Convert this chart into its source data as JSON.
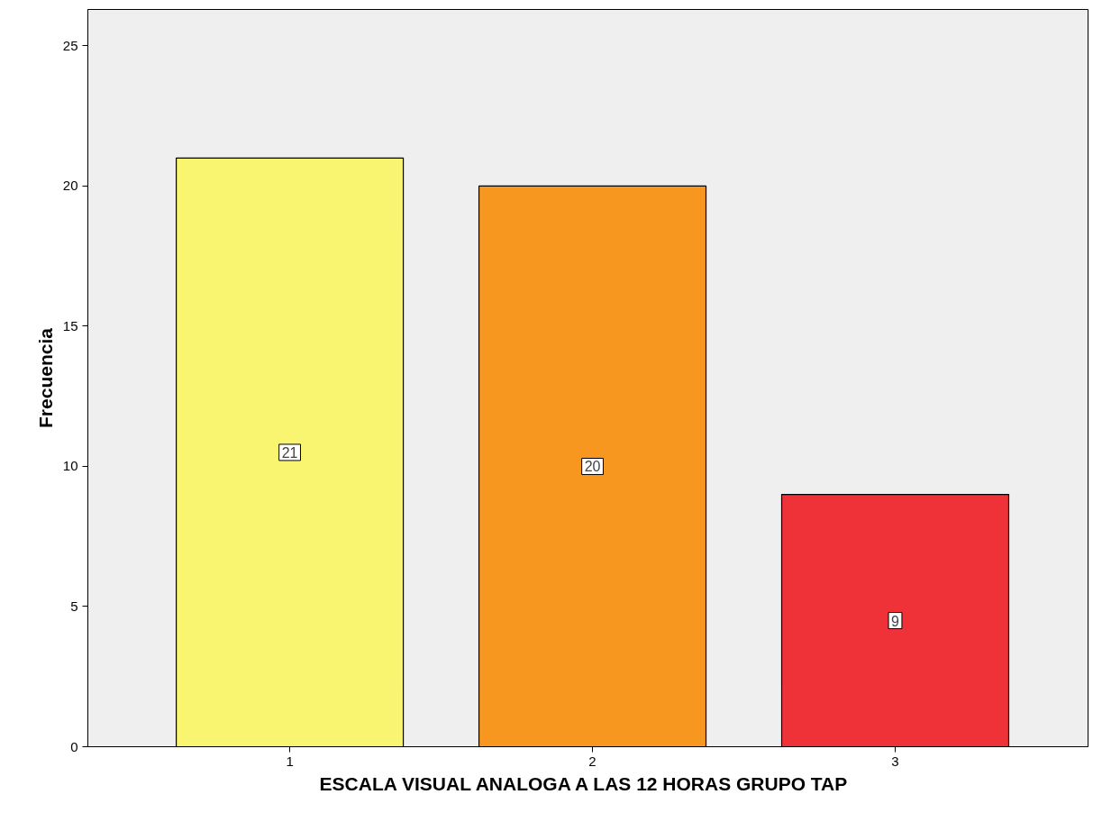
{
  "chart_data": {
    "type": "bar",
    "xlabel": "ESCALA VISUAL ANALOGA  A LAS 12 HORAS GRUPO TAP",
    "ylabel": "Frecuencia",
    "categories": [
      "1",
      "2",
      "3"
    ],
    "values": [
      21,
      20,
      9
    ],
    "colors": [
      "#f9f571",
      "#f7971f",
      "#ef3237"
    ],
    "ylim": [
      0,
      26.3
    ],
    "yticks": [
      0,
      5,
      10,
      15,
      20,
      25
    ],
    "grid": false,
    "data_labels": true
  }
}
